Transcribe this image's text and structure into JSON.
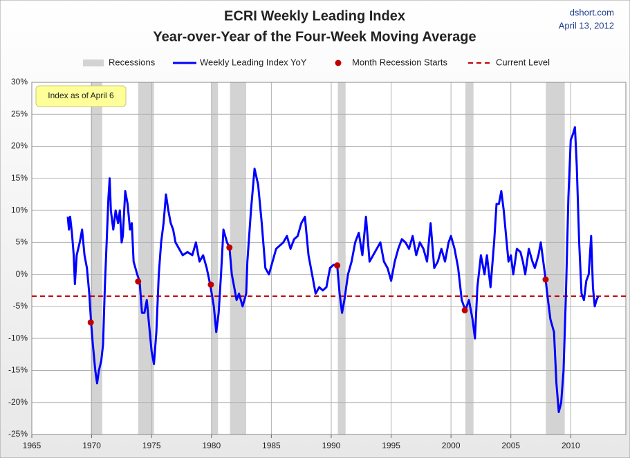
{
  "chart_data": {
    "type": "line",
    "title": "ECRI Weekly Leading Index",
    "subtitle": "Year-over-Year of the Four-Week Moving Average",
    "source": "dshort.com",
    "date": "April 13, 2012",
    "annotation": "Index as of April 6",
    "xlim": [
      1965,
      2014.6
    ],
    "xticks": [
      1965,
      1970,
      1975,
      1980,
      1985,
      1990,
      1995,
      2000,
      2005,
      2010
    ],
    "ylim": [
      -25,
      30
    ],
    "yticks": [
      {
        "value": -25,
        "label": "-25%"
      },
      {
        "value": -20,
        "label": "-20%"
      },
      {
        "value": -15,
        "label": "-15%"
      },
      {
        "value": -10,
        "label": "-10%"
      },
      {
        "value": -5,
        "label": "-5%"
      },
      {
        "value": 0,
        "label": "0%"
      },
      {
        "value": 5,
        "label": "5%"
      },
      {
        "value": 10,
        "label": "10%"
      },
      {
        "value": 15,
        "label": "15%"
      },
      {
        "value": 20,
        "label": "20%"
      },
      {
        "value": 25,
        "label": "25%"
      },
      {
        "value": 30,
        "label": "30%"
      }
    ],
    "grid": true,
    "recessions": {
      "name": "Recessions",
      "color": "#d3d3d3",
      "spans": [
        [
          1969.92,
          1970.88
        ],
        [
          1973.88,
          1975.2
        ],
        [
          1980.0,
          1980.55
        ],
        [
          1981.55,
          1982.9
        ],
        [
          1990.55,
          1991.2
        ],
        [
          2001.2,
          2001.88
        ],
        [
          2007.92,
          2009.5
        ]
      ]
    },
    "series": [
      {
        "name": "Weekly Leading Index YoY",
        "color": "#0000ff",
        "x": [
          1968.0,
          1968.1,
          1968.2,
          1968.35,
          1968.5,
          1968.6,
          1968.75,
          1969.0,
          1969.2,
          1969.4,
          1969.6,
          1969.8,
          1969.95,
          1970.1,
          1970.3,
          1970.45,
          1970.6,
          1970.8,
          1970.95,
          1971.1,
          1971.25,
          1971.4,
          1971.5,
          1971.6,
          1971.8,
          1972.0,
          1972.2,
          1972.35,
          1972.5,
          1972.6,
          1972.8,
          1973.0,
          1973.2,
          1973.35,
          1973.5,
          1973.8,
          1974.0,
          1974.2,
          1974.4,
          1974.6,
          1974.8,
          1975.0,
          1975.2,
          1975.4,
          1975.6,
          1975.8,
          1976.0,
          1976.2,
          1976.4,
          1976.6,
          1976.8,
          1977.0,
          1977.3,
          1977.6,
          1978.0,
          1978.4,
          1978.7,
          1979.0,
          1979.3,
          1979.6,
          1979.9,
          1980.2,
          1980.4,
          1980.6,
          1980.8,
          1981.0,
          1981.3,
          1981.5,
          1981.7,
          1981.9,
          1982.1,
          1982.3,
          1982.6,
          1982.9,
          1983.0,
          1983.3,
          1983.6,
          1983.9,
          1984.2,
          1984.5,
          1984.8,
          1985.1,
          1985.4,
          1985.7,
          1986.0,
          1986.3,
          1986.6,
          1986.9,
          1987.2,
          1987.5,
          1987.8,
          1988.1,
          1988.4,
          1988.7,
          1989.0,
          1989.3,
          1989.6,
          1989.9,
          1990.2,
          1990.5,
          1990.7,
          1990.9,
          1991.1,
          1991.4,
          1991.7,
          1992.0,
          1992.3,
          1992.6,
          1992.9,
          1993.2,
          1993.5,
          1993.8,
          1994.1,
          1994.4,
          1994.7,
          1995.0,
          1995.3,
          1995.6,
          1995.9,
          1996.2,
          1996.5,
          1996.8,
          1997.1,
          1997.4,
          1997.7,
          1998.0,
          1998.3,
          1998.6,
          1998.9,
          1999.2,
          1999.5,
          1999.8,
          2000.0,
          2000.3,
          2000.6,
          2000.9,
          2001.2,
          2001.5,
          2001.8,
          2002.0,
          2002.2,
          2002.5,
          2002.8,
          2003.0,
          2003.3,
          2003.6,
          2003.8,
          2004.0,
          2004.2,
          2004.4,
          2004.6,
          2004.8,
          2005.0,
          2005.2,
          2005.5,
          2005.8,
          2006.0,
          2006.2,
          2006.5,
          2006.8,
          2007.0,
          2007.3,
          2007.5,
          2007.9,
          2008.1,
          2008.3,
          2008.6,
          2008.8,
          2009.0,
          2009.2,
          2009.4,
          2009.6,
          2009.8,
          2010.0,
          2010.2,
          2010.35,
          2010.5,
          2010.7,
          2010.9,
          2011.1,
          2011.3,
          2011.5,
          2011.7,
          2011.85,
          2012.0,
          2012.15,
          2012.3
        ],
        "values": [
          9,
          7,
          9,
          6.5,
          3,
          -1.5,
          3,
          5,
          7,
          3,
          1,
          -3,
          -7.5,
          -11,
          -15,
          -17,
          -15,
          -13.5,
          -11,
          -2,
          5,
          12,
          15,
          10,
          7,
          10,
          8,
          10,
          5,
          6,
          13,
          11,
          7,
          8,
          2,
          0,
          -1.1,
          -6,
          -6,
          -4,
          -8,
          -12,
          -14,
          -9,
          0,
          5,
          8,
          12.5,
          10,
          8,
          7,
          5,
          4,
          3,
          3.5,
          3,
          5,
          2,
          3,
          1,
          -1.6,
          -5,
          -9,
          -6,
          0,
          7,
          5,
          4.2,
          0,
          -2,
          -4,
          -3,
          -5,
          -3,
          2,
          10,
          16.5,
          14,
          8,
          1,
          0,
          2,
          4,
          4.5,
          5,
          6,
          4,
          5.5,
          6,
          8,
          9,
          3,
          0,
          -3,
          -2,
          -2.5,
          -2,
          1,
          1.5,
          1.4,
          -3,
          -6,
          -4,
          0,
          2,
          5,
          6.5,
          3,
          9,
          2,
          3,
          4,
          5,
          2,
          1,
          -1,
          2,
          4,
          5.5,
          5,
          4,
          6,
          3,
          5,
          4,
          2,
          8,
          1,
          2,
          4,
          2,
          5,
          6,
          4,
          1,
          -4,
          -5.6,
          -4,
          -7,
          -10,
          -2,
          3,
          0,
          3,
          -2,
          5,
          11,
          11,
          13,
          10,
          6,
          2,
          3,
          0,
          4,
          3.5,
          2,
          0,
          4,
          2,
          1,
          3,
          5,
          -0.8,
          -4,
          -7,
          -9,
          -17,
          -21.5,
          -20,
          -15,
          -3,
          12,
          21,
          22,
          23,
          17,
          5,
          -3,
          -4,
          -1,
          0,
          6,
          -2,
          -5,
          -4,
          -3.4
        ]
      },
      {
        "name": "Month Recession Starts",
        "color": "#c00000",
        "x": [
          1969.92,
          1973.88,
          1979.95,
          1981.5,
          1990.5,
          2001.15,
          2007.9
        ],
        "values": [
          -7.5,
          -1.1,
          -1.6,
          4.2,
          1.4,
          -5.6,
          -0.8
        ]
      }
    ],
    "reference_line": {
      "name": "Current Level",
      "value": -3.4,
      "color": "#c00000"
    }
  }
}
